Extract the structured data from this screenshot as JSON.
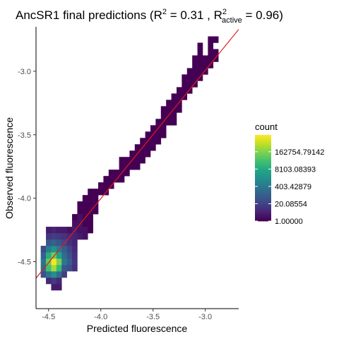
{
  "chart_data": {
    "type": "heatmap",
    "title": {
      "prefix": "AncSR1 final predictions (R",
      "sup1": "2",
      "middle": " = 0.31 , R",
      "sup2": "2",
      "sub2": "active",
      "suffix": " = 0.96)"
    },
    "xlabel": "Predicted fluorescence",
    "ylabel": "Observed fluorescence",
    "xlim": [
      -4.62,
      -2.68
    ],
    "ylim": [
      -4.87,
      -2.65
    ],
    "x_ticks": [
      {
        "value": -4.5,
        "label": "-4.5"
      },
      {
        "value": -4.0,
        "label": "-4.0"
      },
      {
        "value": -3.5,
        "label": "-3.5"
      },
      {
        "value": -3.0,
        "label": "-3.0"
      }
    ],
    "y_ticks": [
      {
        "value": -4.5,
        "label": "-4.5"
      },
      {
        "value": -4.0,
        "label": "-4.0"
      },
      {
        "value": -3.5,
        "label": "-3.5"
      },
      {
        "value": -3.0,
        "label": "-3.0"
      }
    ],
    "grid": false,
    "bin_width": 0.05,
    "bin_height": 0.05,
    "fit_line": {
      "points": [
        [
          -4.62,
          -4.63
        ],
        [
          -2.68,
          -2.67
        ]
      ],
      "color": "#e41a1c"
    },
    "colorscale": "viridis-log",
    "count_range": [
      1,
      3000000
    ],
    "bins": [
      {
        "x": -4.45,
        "y": -4.7,
        "count": 3
      },
      {
        "x": -4.4,
        "y": -4.7,
        "count": 3
      },
      {
        "x": -4.5,
        "y": -4.65,
        "count": 5
      },
      {
        "x": -4.45,
        "y": -4.65,
        "count": 12
      },
      {
        "x": -4.4,
        "y": -4.65,
        "count": 5
      },
      {
        "x": -4.55,
        "y": -4.6,
        "count": 40
      },
      {
        "x": -4.5,
        "y": -4.6,
        "count": 300
      },
      {
        "x": -4.45,
        "y": -4.6,
        "count": 1500
      },
      {
        "x": -4.4,
        "y": -4.6,
        "count": 200
      },
      {
        "x": -4.35,
        "y": -4.6,
        "count": 15
      },
      {
        "x": -4.55,
        "y": -4.55,
        "count": 200
      },
      {
        "x": -4.5,
        "y": -4.55,
        "count": 30000
      },
      {
        "x": -4.45,
        "y": -4.55,
        "count": 400000
      },
      {
        "x": -4.4,
        "y": -4.55,
        "count": 20000
      },
      {
        "x": -4.35,
        "y": -4.55,
        "count": 60
      },
      {
        "x": -4.3,
        "y": -4.55,
        "count": 30
      },
      {
        "x": -4.25,
        "y": -4.55,
        "count": 8
      },
      {
        "x": -4.55,
        "y": -4.5,
        "count": 300
      },
      {
        "x": -4.5,
        "y": -4.5,
        "count": 80000
      },
      {
        "x": -4.45,
        "y": -4.5,
        "count": 2500000
      },
      {
        "x": -4.4,
        "y": -4.5,
        "count": 150000
      },
      {
        "x": -4.35,
        "y": -4.5,
        "count": 400
      },
      {
        "x": -4.3,
        "y": -4.5,
        "count": 80
      },
      {
        "x": -4.25,
        "y": -4.5,
        "count": 10
      },
      {
        "x": -4.55,
        "y": -4.45,
        "count": 100
      },
      {
        "x": -4.5,
        "y": -4.45,
        "count": 10000
      },
      {
        "x": -4.45,
        "y": -4.45,
        "count": 100000
      },
      {
        "x": -4.4,
        "y": -4.45,
        "count": 5000
      },
      {
        "x": -4.35,
        "y": -4.45,
        "count": 200
      },
      {
        "x": -4.3,
        "y": -4.45,
        "count": 40
      },
      {
        "x": -4.25,
        "y": -4.45,
        "count": 8
      },
      {
        "x": -4.55,
        "y": -4.4,
        "count": 30
      },
      {
        "x": -4.5,
        "y": -4.4,
        "count": 500
      },
      {
        "x": -4.45,
        "y": -4.4,
        "count": 2000
      },
      {
        "x": -4.4,
        "y": -4.4,
        "count": 600
      },
      {
        "x": -4.35,
        "y": -4.4,
        "count": 80
      },
      {
        "x": -4.3,
        "y": -4.4,
        "count": 20
      },
      {
        "x": -4.25,
        "y": -4.4,
        "count": 6
      },
      {
        "x": -4.5,
        "y": -4.35,
        "count": 60
      },
      {
        "x": -4.45,
        "y": -4.35,
        "count": 100
      },
      {
        "x": -4.4,
        "y": -4.35,
        "count": 50
      },
      {
        "x": -4.35,
        "y": -4.35,
        "count": 20
      },
      {
        "x": -4.3,
        "y": -4.35,
        "count": 8
      },
      {
        "x": -4.25,
        "y": -4.35,
        "count": 4
      },
      {
        "x": -4.5,
        "y": -4.3,
        "count": 10
      },
      {
        "x": -4.45,
        "y": -4.3,
        "count": 15
      },
      {
        "x": -4.4,
        "y": -4.3,
        "count": 12
      },
      {
        "x": -4.35,
        "y": -4.3,
        "count": 8
      },
      {
        "x": -4.3,
        "y": -4.3,
        "count": 5
      },
      {
        "x": -4.25,
        "y": -4.3,
        "count": 4
      },
      {
        "x": -4.2,
        "y": -4.3,
        "count": 3
      },
      {
        "x": -4.15,
        "y": -4.3,
        "count": 2
      },
      {
        "x": -4.5,
        "y": -4.25,
        "count": 3
      },
      {
        "x": -4.45,
        "y": -4.25,
        "count": 4
      },
      {
        "x": -4.4,
        "y": -4.25,
        "count": 3
      },
      {
        "x": -4.35,
        "y": -4.25,
        "count": 3
      },
      {
        "x": -4.3,
        "y": -4.25,
        "count": 2
      },
      {
        "x": -4.25,
        "y": -4.25,
        "count": 3
      },
      {
        "x": -4.2,
        "y": -4.25,
        "count": 2
      },
      {
        "x": -4.15,
        "y": -4.25,
        "count": 2
      },
      {
        "x": -4.1,
        "y": -4.25,
        "count": 1
      },
      {
        "x": -4.25,
        "y": -4.2,
        "count": 2
      },
      {
        "x": -4.2,
        "y": -4.2,
        "count": 2
      },
      {
        "x": -4.15,
        "y": -4.2,
        "count": 1
      },
      {
        "x": -4.1,
        "y": -4.2,
        "count": 1
      },
      {
        "x": -4.25,
        "y": -4.15,
        "count": 1
      },
      {
        "x": -4.2,
        "y": -4.15,
        "count": 2
      },
      {
        "x": -4.15,
        "y": -4.15,
        "count": 1
      },
      {
        "x": -4.1,
        "y": -4.15,
        "count": 1
      },
      {
        "x": -4.2,
        "y": -4.1,
        "count": 1
      },
      {
        "x": -4.15,
        "y": -4.1,
        "count": 1
      },
      {
        "x": -4.1,
        "y": -4.1,
        "count": 1
      },
      {
        "x": -4.05,
        "y": -4.1,
        "count": 1
      },
      {
        "x": -4.2,
        "y": -4.05,
        "count": 1
      },
      {
        "x": -4.15,
        "y": -4.05,
        "count": 1
      },
      {
        "x": -4.1,
        "y": -4.05,
        "count": 1
      },
      {
        "x": -4.05,
        "y": -4.05,
        "count": 1
      },
      {
        "x": -4.15,
        "y": -4.0,
        "count": 1
      },
      {
        "x": -4.1,
        "y": -4.0,
        "count": 1
      },
      {
        "x": -4.05,
        "y": -4.0,
        "count": 1
      },
      {
        "x": -4.1,
        "y": -3.95,
        "count": 1
      },
      {
        "x": -4.05,
        "y": -3.95,
        "count": 1
      },
      {
        "x": -4.0,
        "y": -3.95,
        "count": 1
      },
      {
        "x": -3.95,
        "y": -3.95,
        "count": 1
      },
      {
        "x": -4.0,
        "y": -3.9,
        "count": 1
      },
      {
        "x": -3.95,
        "y": -3.9,
        "count": 1
      },
      {
        "x": -3.9,
        "y": -3.9,
        "count": 1
      },
      {
        "x": -3.95,
        "y": -3.85,
        "count": 1
      },
      {
        "x": -3.9,
        "y": -3.85,
        "count": 1
      },
      {
        "x": -3.85,
        "y": -3.85,
        "count": 1
      },
      {
        "x": -3.8,
        "y": -3.85,
        "count": 1
      },
      {
        "x": -3.9,
        "y": -3.8,
        "count": 1
      },
      {
        "x": -3.85,
        "y": -3.8,
        "count": 1
      },
      {
        "x": -3.8,
        "y": -3.8,
        "count": 1
      },
      {
        "x": -3.75,
        "y": -3.8,
        "count": 1
      },
      {
        "x": -3.8,
        "y": -3.75,
        "count": 1
      },
      {
        "x": -3.75,
        "y": -3.75,
        "count": 1
      },
      {
        "x": -3.7,
        "y": -3.75,
        "count": 1
      },
      {
        "x": -3.65,
        "y": -3.75,
        "count": 1
      },
      {
        "x": -3.8,
        "y": -3.7,
        "count": 1
      },
      {
        "x": -3.75,
        "y": -3.7,
        "count": 1
      },
      {
        "x": -3.7,
        "y": -3.7,
        "count": 1
      },
      {
        "x": -3.65,
        "y": -3.7,
        "count": 1
      },
      {
        "x": -3.6,
        "y": -3.7,
        "count": 1
      },
      {
        "x": -3.7,
        "y": -3.65,
        "count": 1
      },
      {
        "x": -3.65,
        "y": -3.65,
        "count": 1
      },
      {
        "x": -3.6,
        "y": -3.65,
        "count": 1
      },
      {
        "x": -3.55,
        "y": -3.65,
        "count": 1
      },
      {
        "x": -3.65,
        "y": -3.6,
        "count": 1
      },
      {
        "x": -3.6,
        "y": -3.6,
        "count": 1
      },
      {
        "x": -3.55,
        "y": -3.6,
        "count": 1
      },
      {
        "x": -3.5,
        "y": -3.6,
        "count": 1
      },
      {
        "x": -3.6,
        "y": -3.55,
        "count": 1
      },
      {
        "x": -3.55,
        "y": -3.55,
        "count": 1
      },
      {
        "x": -3.5,
        "y": -3.55,
        "count": 1
      },
      {
        "x": -3.45,
        "y": -3.55,
        "count": 1
      },
      {
        "x": -3.55,
        "y": -3.5,
        "count": 1
      },
      {
        "x": -3.5,
        "y": -3.5,
        "count": 1
      },
      {
        "x": -3.45,
        "y": -3.5,
        "count": 1
      },
      {
        "x": -3.4,
        "y": -3.5,
        "count": 1
      },
      {
        "x": -3.5,
        "y": -3.45,
        "count": 1
      },
      {
        "x": -3.45,
        "y": -3.45,
        "count": 1
      },
      {
        "x": -3.4,
        "y": -3.45,
        "count": 1
      },
      {
        "x": -3.45,
        "y": -3.4,
        "count": 1
      },
      {
        "x": -3.4,
        "y": -3.4,
        "count": 1
      },
      {
        "x": -3.35,
        "y": -3.4,
        "count": 1
      },
      {
        "x": -3.3,
        "y": -3.4,
        "count": 1
      },
      {
        "x": -3.4,
        "y": -3.35,
        "count": 1
      },
      {
        "x": -3.35,
        "y": -3.35,
        "count": 1
      },
      {
        "x": -3.3,
        "y": -3.35,
        "count": 1
      },
      {
        "x": -3.4,
        "y": -3.3,
        "count": 1
      },
      {
        "x": -3.35,
        "y": -3.3,
        "count": 1
      },
      {
        "x": -3.3,
        "y": -3.3,
        "count": 1
      },
      {
        "x": -3.25,
        "y": -3.3,
        "count": 1
      },
      {
        "x": -3.35,
        "y": -3.25,
        "count": 1
      },
      {
        "x": -3.3,
        "y": -3.25,
        "count": 1
      },
      {
        "x": -3.25,
        "y": -3.25,
        "count": 1
      },
      {
        "x": -3.3,
        "y": -3.2,
        "count": 1
      },
      {
        "x": -3.25,
        "y": -3.2,
        "count": 1
      },
      {
        "x": -3.2,
        "y": -3.2,
        "count": 1
      },
      {
        "x": -3.25,
        "y": -3.15,
        "count": 1
      },
      {
        "x": -3.2,
        "y": -3.15,
        "count": 1
      },
      {
        "x": -3.15,
        "y": -3.15,
        "count": 1
      },
      {
        "x": -3.2,
        "y": -3.1,
        "count": 1
      },
      {
        "x": -3.15,
        "y": -3.1,
        "count": 1
      },
      {
        "x": -3.1,
        "y": -3.1,
        "count": 1
      },
      {
        "x": -3.2,
        "y": -3.05,
        "count": 1
      },
      {
        "x": -3.15,
        "y": -3.05,
        "count": 1
      },
      {
        "x": -3.1,
        "y": -3.05,
        "count": 1
      },
      {
        "x": -3.05,
        "y": -3.05,
        "count": 1
      },
      {
        "x": -3.15,
        "y": -3.0,
        "count": 1
      },
      {
        "x": -3.1,
        "y": -3.0,
        "count": 1
      },
      {
        "x": -3.05,
        "y": -3.0,
        "count": 1
      },
      {
        "x": -3.0,
        "y": -3.0,
        "count": 1
      },
      {
        "x": -3.1,
        "y": -2.95,
        "count": 1
      },
      {
        "x": -3.05,
        "y": -2.95,
        "count": 1
      },
      {
        "x": -3.0,
        "y": -2.95,
        "count": 1
      },
      {
        "x": -2.95,
        "y": -2.95,
        "count": 1
      },
      {
        "x": -3.1,
        "y": -2.9,
        "count": 1
      },
      {
        "x": -3.05,
        "y": -2.9,
        "count": 1
      },
      {
        "x": -3.0,
        "y": -2.9,
        "count": 1
      },
      {
        "x": -2.95,
        "y": -2.9,
        "count": 1
      },
      {
        "x": -2.9,
        "y": -2.9,
        "count": 1
      },
      {
        "x": -3.05,
        "y": -2.85,
        "count": 1
      },
      {
        "x": -2.95,
        "y": -2.85,
        "count": 1
      },
      {
        "x": -2.9,
        "y": -2.85,
        "count": 1
      },
      {
        "x": -3.05,
        "y": -2.8,
        "count": 1
      },
      {
        "x": -2.95,
        "y": -2.8,
        "count": 1
      },
      {
        "x": -2.95,
        "y": -2.75,
        "count": 1
      },
      {
        "x": -2.9,
        "y": -2.75,
        "count": 1
      }
    ],
    "legend": {
      "title": "count",
      "placement": "right",
      "entries": [
        {
          "count": 162754.79142,
          "label": "162754.79142"
        },
        {
          "count": 8103.08393,
          "label": "8103.08393"
        },
        {
          "count": 403.42879,
          "label": "403.42879"
        },
        {
          "count": 20.08554,
          "label": "20.08554"
        },
        {
          "count": 1,
          "label": "1.00000"
        }
      ]
    }
  }
}
